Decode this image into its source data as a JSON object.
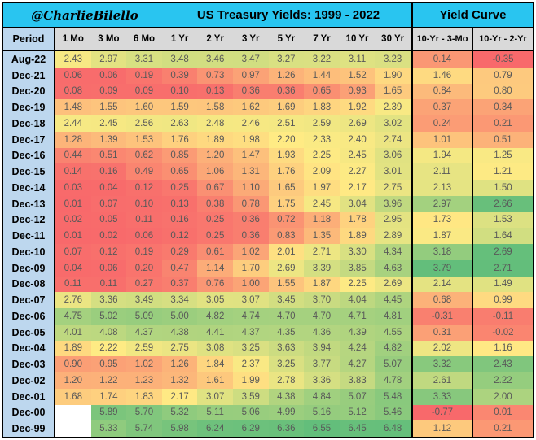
{
  "banner": {
    "handle": "@CharlieBilello",
    "title": "US Treasury Yields: 1999 - 2022",
    "yield_curve_title": "Yield Curve"
  },
  "columns": {
    "period": "Period",
    "maturities": [
      "1 Mo",
      "3 Mo",
      "6 Mo",
      "1 Yr",
      "2 Yr",
      "3 Yr",
      "5 Yr",
      "7 Yr",
      "10 Yr",
      "30 Yr"
    ],
    "spreads": [
      "10-Yr - 3-Mo",
      "10-Yr - 2-Yr"
    ]
  },
  "chart_data": {
    "type": "heatmap",
    "title": "US Treasury Yields: 1999 - 2022",
    "x_categories": [
      "1 Mo",
      "3 Mo",
      "6 Mo",
      "1 Yr",
      "2 Yr",
      "3 Yr",
      "5 Yr",
      "7 Yr",
      "10 Yr",
      "30 Yr",
      "10-Yr - 3-Mo",
      "10-Yr - 2-Yr"
    ],
    "rows": [
      {
        "period": "Aug-22",
        "yields": [
          2.43,
          2.97,
          3.31,
          3.48,
          3.46,
          3.47,
          3.27,
          3.22,
          3.11,
          3.23
        ],
        "spreads": [
          0.14,
          -0.35
        ]
      },
      {
        "period": "Dec-21",
        "yields": [
          0.06,
          0.06,
          0.19,
          0.39,
          0.73,
          0.97,
          1.26,
          1.44,
          1.52,
          1.9
        ],
        "spreads": [
          1.46,
          0.79
        ]
      },
      {
        "period": "Dec-20",
        "yields": [
          0.08,
          0.09,
          0.09,
          0.1,
          0.13,
          0.36,
          0.36,
          0.65,
          0.93,
          1.65
        ],
        "spreads": [
          0.84,
          0.8
        ]
      },
      {
        "period": "Dec-19",
        "yields": [
          1.48,
          1.55,
          1.6,
          1.59,
          1.58,
          1.62,
          1.69,
          1.83,
          1.92,
          2.39
        ],
        "spreads": [
          0.37,
          0.34
        ]
      },
      {
        "period": "Dec-18",
        "yields": [
          2.44,
          2.45,
          2.56,
          2.63,
          2.48,
          2.46,
          2.51,
          2.59,
          2.69,
          3.02
        ],
        "spreads": [
          0.24,
          0.21
        ]
      },
      {
        "period": "Dec-17",
        "yields": [
          1.28,
          1.39,
          1.53,
          1.76,
          1.89,
          1.98,
          2.2,
          2.33,
          2.4,
          2.74
        ],
        "spreads": [
          1.01,
          0.51
        ]
      },
      {
        "period": "Dec-16",
        "yields": [
          0.44,
          0.51,
          0.62,
          0.85,
          1.2,
          1.47,
          1.93,
          2.25,
          2.45,
          3.06
        ],
        "spreads": [
          1.94,
          1.25
        ]
      },
      {
        "period": "Dec-15",
        "yields": [
          0.14,
          0.16,
          0.49,
          0.65,
          1.06,
          1.31,
          1.76,
          2.09,
          2.27,
          3.01
        ],
        "spreads": [
          2.11,
          1.21
        ]
      },
      {
        "period": "Dec-14",
        "yields": [
          0.03,
          0.04,
          0.12,
          0.25,
          0.67,
          1.1,
          1.65,
          1.97,
          2.17,
          2.75
        ],
        "spreads": [
          2.13,
          1.5
        ]
      },
      {
        "period": "Dec-13",
        "yields": [
          0.01,
          0.07,
          0.1,
          0.13,
          0.38,
          0.78,
          1.75,
          2.45,
          3.04,
          3.96
        ],
        "spreads": [
          2.97,
          2.66
        ]
      },
      {
        "period": "Dec-12",
        "yields": [
          0.02,
          0.05,
          0.11,
          0.16,
          0.25,
          0.36,
          0.72,
          1.18,
          1.78,
          2.95
        ],
        "spreads": [
          1.73,
          1.53
        ]
      },
      {
        "period": "Dec-11",
        "yields": [
          0.01,
          0.02,
          0.06,
          0.12,
          0.25,
          0.36,
          0.83,
          1.35,
          1.89,
          2.89
        ],
        "spreads": [
          1.87,
          1.64
        ]
      },
      {
        "period": "Dec-10",
        "yields": [
          0.07,
          0.12,
          0.19,
          0.29,
          0.61,
          1.02,
          2.01,
          2.71,
          3.3,
          4.34
        ],
        "spreads": [
          3.18,
          2.69
        ]
      },
      {
        "period": "Dec-09",
        "yields": [
          0.04,
          0.06,
          0.2,
          0.47,
          1.14,
          1.7,
          2.69,
          3.39,
          3.85,
          4.63
        ],
        "spreads": [
          3.79,
          2.71
        ]
      },
      {
        "period": "Dec-08",
        "yields": [
          0.11,
          0.11,
          0.27,
          0.37,
          0.76,
          1.0,
          1.55,
          1.87,
          2.25,
          2.69
        ],
        "spreads": [
          2.14,
          1.49
        ]
      },
      {
        "period": "Dec-07",
        "yields": [
          2.76,
          3.36,
          3.49,
          3.34,
          3.05,
          3.07,
          3.45,
          3.7,
          4.04,
          4.45
        ],
        "spreads": [
          0.68,
          0.99
        ]
      },
      {
        "period": "Dec-06",
        "yields": [
          4.75,
          5.02,
          5.09,
          5.0,
          4.82,
          4.74,
          4.7,
          4.7,
          4.71,
          4.81
        ],
        "spreads": [
          -0.31,
          -0.11
        ]
      },
      {
        "period": "Dec-05",
        "yields": [
          4.01,
          4.08,
          4.37,
          4.38,
          4.41,
          4.37,
          4.35,
          4.36,
          4.39,
          4.55
        ],
        "spreads": [
          0.31,
          -0.02
        ]
      },
      {
        "period": "Dec-04",
        "yields": [
          1.89,
          2.22,
          2.59,
          2.75,
          3.08,
          3.25,
          3.63,
          3.94,
          4.24,
          4.82
        ],
        "spreads": [
          2.02,
          1.16
        ]
      },
      {
        "period": "Dec-03",
        "yields": [
          0.9,
          0.95,
          1.02,
          1.26,
          1.84,
          2.37,
          3.25,
          3.77,
          4.27,
          5.07
        ],
        "spreads": [
          3.32,
          2.43
        ]
      },
      {
        "period": "Dec-02",
        "yields": [
          1.2,
          1.22,
          1.23,
          1.32,
          1.61,
          1.99,
          2.78,
          3.36,
          3.83,
          4.78
        ],
        "spreads": [
          2.61,
          2.22
        ]
      },
      {
        "period": "Dec-01",
        "yields": [
          1.68,
          1.74,
          1.83,
          2.17,
          3.07,
          3.59,
          4.38,
          4.84,
          5.07,
          5.48
        ],
        "spreads": [
          3.33,
          2.0
        ]
      },
      {
        "period": "Dec-00",
        "yields": [
          null,
          5.89,
          5.7,
          5.32,
          5.11,
          5.06,
          4.99,
          5.16,
          5.12,
          5.46
        ],
        "spreads": [
          -0.77,
          0.01
        ]
      },
      {
        "period": "Dec-99",
        "yields": [
          null,
          5.33,
          5.74,
          5.98,
          6.24,
          6.29,
          6.36,
          6.55,
          6.45,
          6.48
        ],
        "spreads": [
          1.12,
          0.21
        ]
      }
    ],
    "colors": {
      "scale_low": "#F8696B",
      "scale_mid": "#FFEB84",
      "scale_high": "#63BE7B",
      "blank_cell": "#FFFFFF",
      "banner_bg": "#29C5F0",
      "period_bg": "#BDD7EE",
      "header_bg": "#D9D9D9",
      "data_text": "#595959"
    },
    "scales": {
      "yields": {
        "min": 0.01,
        "mid": 2.2,
        "max": 6.55
      },
      "spread_10y_3m": {
        "min": -0.77,
        "mid": 1.8,
        "max": 3.79
      },
      "spread_10y_2y": {
        "min": -0.35,
        "mid": 1.19,
        "max": 2.71
      }
    },
    "value_format": "0.00"
  }
}
